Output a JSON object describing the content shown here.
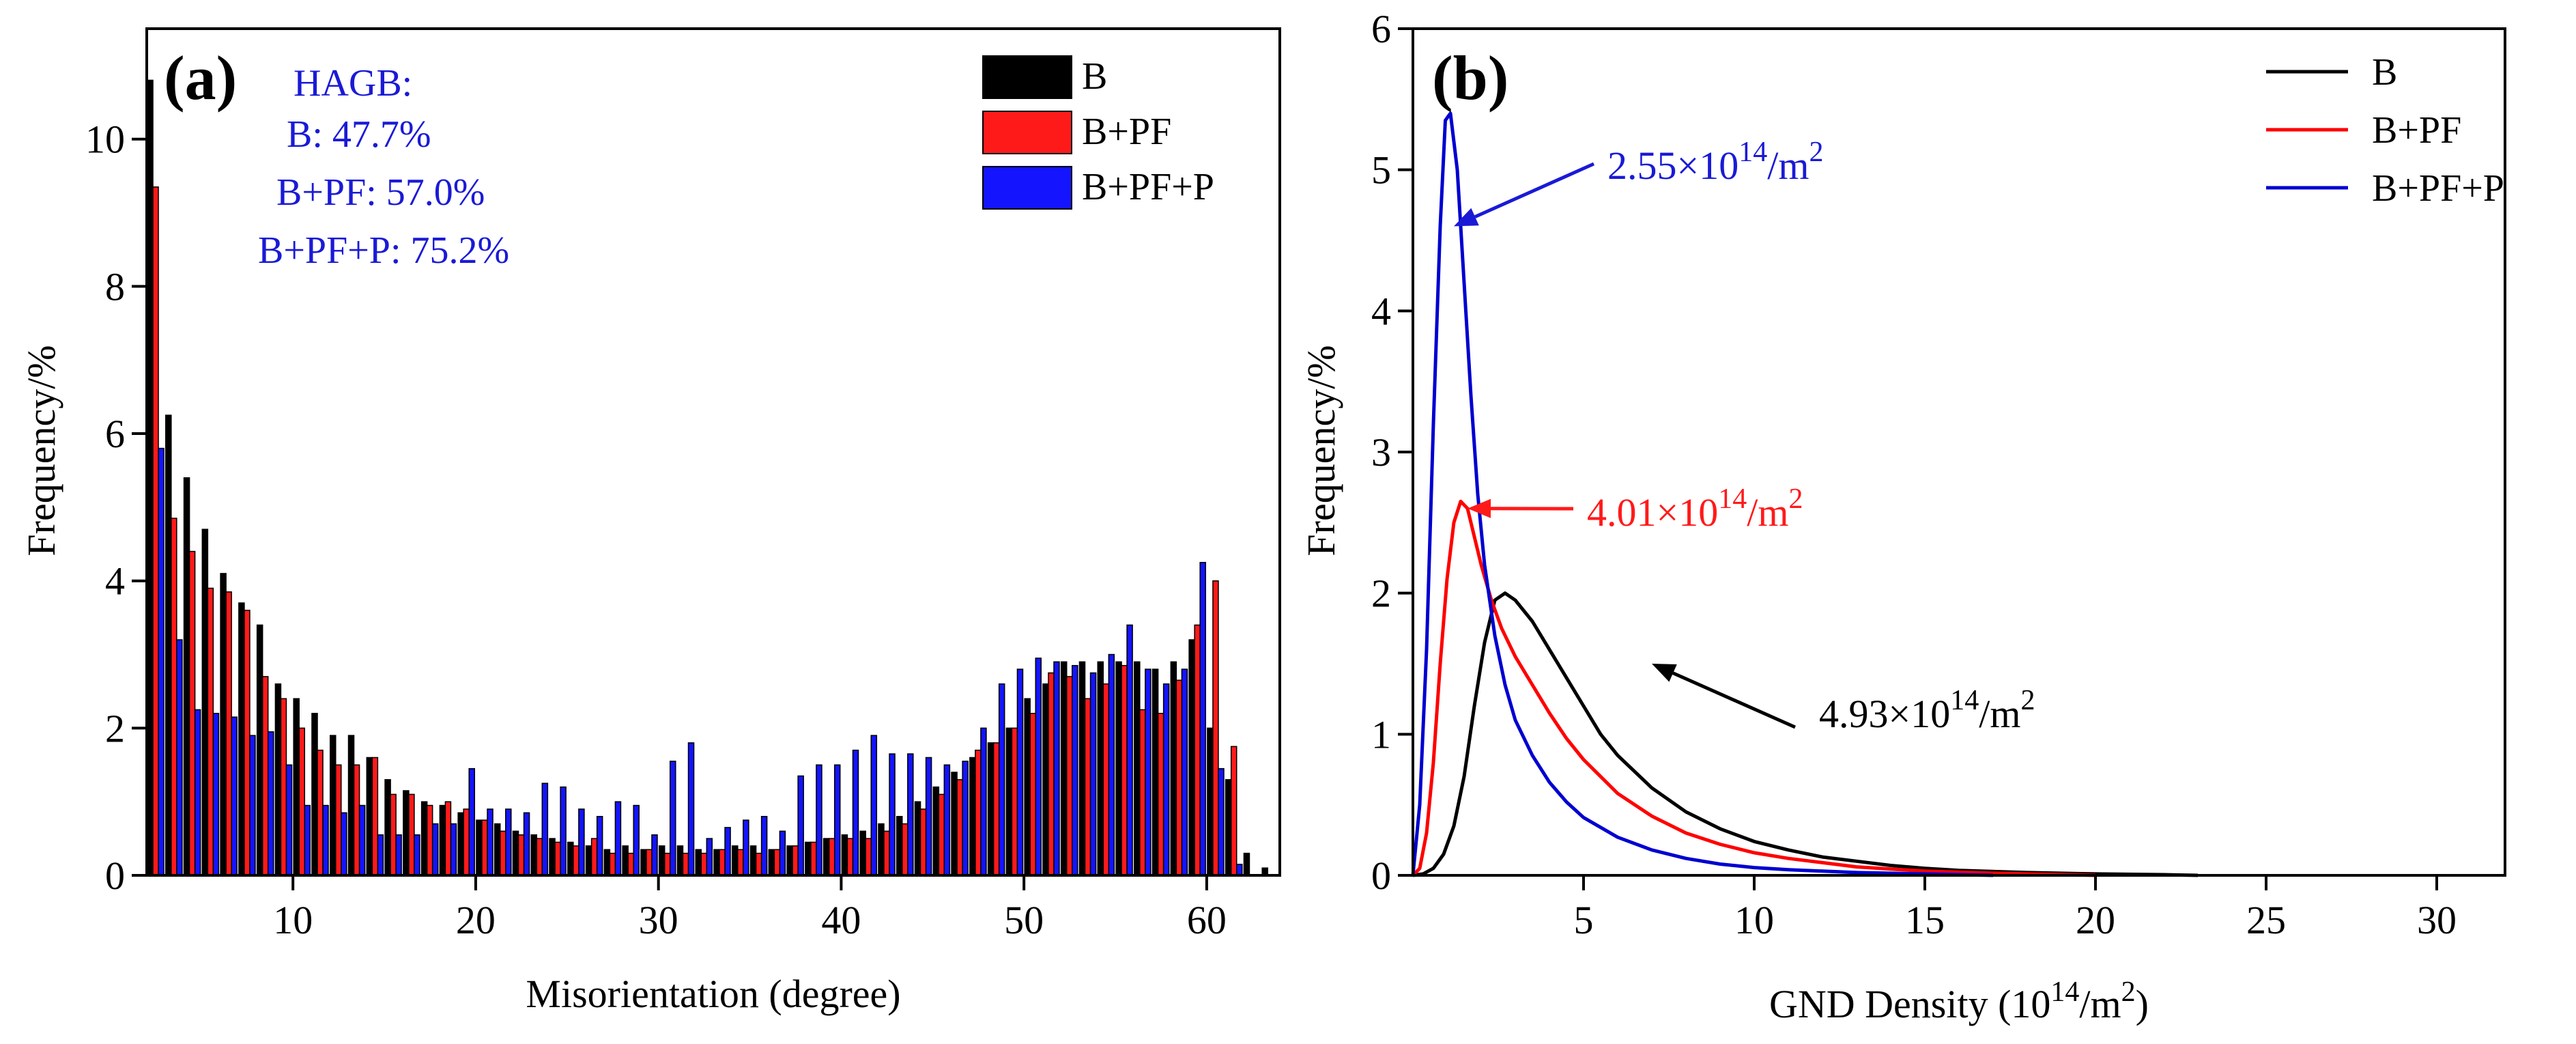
{
  "chart_data": [
    {
      "type": "bar",
      "panel_label": "(a)",
      "xlabel": "Misorientation (degree)",
      "ylabel": "Frequency/%",
      "xlim": [
        2,
        64
      ],
      "ylim": [
        0,
        11.5
      ],
      "xticks": [
        10,
        20,
        30,
        40,
        50,
        60
      ],
      "yticks": [
        0,
        2,
        4,
        6,
        8,
        10
      ],
      "annotation": {
        "title": "HAGB:",
        "lines": [
          "B: 47.7%",
          "B+PF: 57.0%",
          "B+PF+P: 75.2%"
        ],
        "color": "#1a1ad6"
      },
      "legend": {
        "placement": "top-right",
        "entries": [
          "B",
          "B+PF",
          "B+PF+P"
        ]
      },
      "x": [
        2,
        3,
        4,
        5,
        6,
        7,
        8,
        9,
        10,
        11,
        12,
        13,
        14,
        15,
        16,
        17,
        18,
        19,
        20,
        21,
        22,
        23,
        24,
        25,
        26,
        27,
        28,
        29,
        30,
        31,
        32,
        33,
        34,
        35,
        36,
        37,
        38,
        39,
        40,
        41,
        42,
        43,
        44,
        45,
        46,
        47,
        48,
        49,
        50,
        51,
        52,
        53,
        54,
        55,
        56,
        57,
        58,
        59,
        60,
        61,
        62,
        63
      ],
      "series": [
        {
          "name": "B",
          "color": "#000000",
          "values": [
            10.8,
            6.25,
            5.4,
            4.7,
            4.1,
            3.7,
            3.4,
            2.6,
            2.4,
            2.2,
            1.9,
            1.9,
            1.6,
            1.3,
            1.15,
            1.0,
            0.95,
            0.85,
            0.75,
            0.7,
            0.6,
            0.55,
            0.5,
            0.45,
            0.4,
            0.35,
            0.4,
            0.35,
            0.4,
            0.4,
            0.35,
            0.35,
            0.4,
            0.4,
            0.35,
            0.4,
            0.45,
            0.5,
            0.55,
            0.6,
            0.7,
            0.8,
            1.0,
            1.2,
            1.4,
            1.6,
            1.8,
            2.0,
            2.4,
            2.6,
            2.9,
            2.9,
            2.9,
            2.9,
            2.9,
            2.8,
            2.9,
            3.2,
            2.0,
            1.3,
            0.3,
            0.1
          ]
        },
        {
          "name": "B+PF",
          "color": "#ff1a1a",
          "values": [
            9.35,
            4.85,
            4.4,
            3.9,
            3.85,
            3.6,
            2.7,
            2.4,
            2.0,
            1.7,
            1.5,
            1.5,
            1.6,
            1.1,
            1.1,
            0.95,
            1.0,
            0.9,
            0.75,
            0.6,
            0.55,
            0.5,
            0.45,
            0.4,
            0.5,
            0.3,
            0.3,
            0.35,
            0.3,
            0.3,
            0.3,
            0.35,
            0.35,
            0.3,
            0.35,
            0.4,
            0.45,
            0.5,
            0.5,
            0.5,
            0.6,
            0.7,
            0.9,
            1.1,
            1.3,
            1.7,
            1.8,
            2.0,
            2.2,
            2.75,
            2.7,
            2.4,
            2.6,
            2.85,
            2.25,
            2.2,
            2.65,
            3.4,
            4.0,
            1.75,
            0.0,
            0.0
          ]
        },
        {
          "name": "B+PF+P",
          "color": "#1414ff",
          "values": [
            5.8,
            3.2,
            2.25,
            2.2,
            2.15,
            1.9,
            1.95,
            1.5,
            0.95,
            0.95,
            0.85,
            0.95,
            0.55,
            0.55,
            0.55,
            0.7,
            0.7,
            1.45,
            0.9,
            0.9,
            0.85,
            1.25,
            1.2,
            0.9,
            0.8,
            1.0,
            0.95,
            0.55,
            1.55,
            1.8,
            0.5,
            0.65,
            0.75,
            0.8,
            0.6,
            1.35,
            1.5,
            1.5,
            1.7,
            1.9,
            1.65,
            1.65,
            1.6,
            1.5,
            1.55,
            2.0,
            2.6,
            2.8,
            2.95,
            2.9,
            2.85,
            2.75,
            3.0,
            3.4,
            2.8,
            2.6,
            2.8,
            4.25,
            1.45,
            0.15,
            0.0,
            0.0
          ]
        }
      ]
    },
    {
      "type": "line",
      "panel_label": "(b)",
      "xlabel_prefix": "GND Density (10",
      "xlabel_sup": "14",
      "xlabel_mid": "/m",
      "xlabel_sup2": "2",
      "xlabel_suffix": ")",
      "ylabel": "Frequency/%",
      "xlim": [
        0,
        32
      ],
      "ylim": [
        0,
        6
      ],
      "xticks": [
        5,
        10,
        15,
        20,
        25,
        30
      ],
      "yticks": [
        0,
        1,
        2,
        3,
        4,
        5,
        6
      ],
      "legend": {
        "placement": "top-right",
        "entries": [
          "B",
          "B+PF",
          "B+PF+P"
        ]
      },
      "series": [
        {
          "name": "B",
          "color": "#000000",
          "x": [
            0,
            0.3,
            0.6,
            0.9,
            1.2,
            1.5,
            1.8,
            2.1,
            2.4,
            2.7,
            3.0,
            3.5,
            4.0,
            4.5,
            5.0,
            5.5,
            6.0,
            7.0,
            8.0,
            9.0,
            10.0,
            11.0,
            12.0,
            13.0,
            14.0,
            15.0,
            16.0,
            18.0,
            20.0,
            22.0,
            23.0
          ],
          "y": [
            0,
            0.01,
            0.05,
            0.15,
            0.35,
            0.7,
            1.2,
            1.65,
            1.95,
            2.0,
            1.95,
            1.8,
            1.6,
            1.4,
            1.2,
            1.0,
            0.85,
            0.62,
            0.45,
            0.33,
            0.24,
            0.18,
            0.13,
            0.1,
            0.07,
            0.05,
            0.035,
            0.02,
            0.01,
            0.005,
            0.0
          ]
        },
        {
          "name": "B+PF",
          "color": "#ff0000",
          "x": [
            0,
            0.2,
            0.4,
            0.6,
            0.8,
            1.0,
            1.2,
            1.4,
            1.6,
            1.8,
            2.0,
            2.3,
            2.6,
            3.0,
            3.5,
            4.0,
            4.5,
            5.0,
            5.5,
            6.0,
            7.0,
            8.0,
            9.0,
            10.0,
            11.0,
            12.0,
            13.0,
            14.0,
            15.0,
            17.0,
            19.0,
            20.0
          ],
          "y": [
            0,
            0.05,
            0.3,
            0.8,
            1.5,
            2.1,
            2.5,
            2.65,
            2.6,
            2.4,
            2.2,
            1.95,
            1.75,
            1.55,
            1.35,
            1.15,
            0.97,
            0.82,
            0.7,
            0.58,
            0.42,
            0.3,
            0.22,
            0.16,
            0.12,
            0.09,
            0.06,
            0.045,
            0.03,
            0.015,
            0.005,
            0.0
          ]
        },
        {
          "name": "B+PF+P",
          "color": "#0000d0",
          "x": [
            0,
            0.2,
            0.4,
            0.6,
            0.8,
            0.95,
            1.1,
            1.3,
            1.5,
            1.7,
            1.9,
            2.1,
            2.4,
            2.7,
            3.0,
            3.5,
            4.0,
            4.5,
            5.0,
            6.0,
            7.0,
            8.0,
            9.0,
            10.0,
            11.0,
            12.0,
            13.0,
            14.0,
            15.0,
            17.0
          ],
          "y": [
            0,
            0.5,
            1.6,
            3.2,
            4.6,
            5.35,
            5.4,
            5.0,
            4.2,
            3.4,
            2.7,
            2.2,
            1.7,
            1.35,
            1.1,
            0.85,
            0.66,
            0.52,
            0.41,
            0.27,
            0.18,
            0.12,
            0.08,
            0.055,
            0.04,
            0.03,
            0.02,
            0.015,
            0.01,
            0.0
          ]
        }
      ],
      "annotations": [
        {
          "base": "2.55×10",
          "sup": "14",
          "unit": "/m",
          "sup2": "2",
          "color": "#1a1ad6",
          "arrow_to": [
            1.2,
            4.6
          ]
        },
        {
          "base": "4.01×10",
          "sup": "14",
          "unit": "/m",
          "sup2": "2",
          "color": "#ff1a1a",
          "arrow_to": [
            1.6,
            2.6
          ]
        },
        {
          "base": "4.93×10",
          "sup": "14",
          "unit": "/m",
          "sup2": "2",
          "color": "#000000",
          "arrow_to": [
            7.0,
            1.5
          ]
        }
      ]
    }
  ]
}
